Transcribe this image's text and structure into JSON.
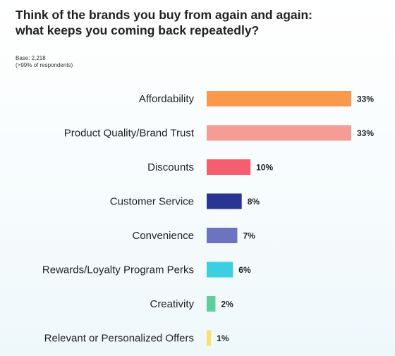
{
  "header": {
    "title_line1": "Think of the brands you buy from again and again:",
    "title_line2": "what keeps you coming back repeatedly?",
    "base_line1": "Base: 2,218",
    "base_line2": "(>99% of respondents)"
  },
  "chart_data": {
    "type": "bar",
    "orientation": "horizontal",
    "title": "Think of the brands you buy from again and again: what keeps you coming back repeatedly?",
    "categories": [
      "Affordability",
      "Product Quality/Brand Trust",
      "Discounts",
      "Customer Service",
      "Convenience",
      "Rewards/Loyalty Program Perks",
      "Creativity",
      "Relevant or Personalized Offers"
    ],
    "values": [
      33,
      33,
      10,
      8,
      7,
      6,
      2,
      1
    ],
    "value_labels": [
      "33%",
      "33%",
      "10%",
      "8%",
      "7%",
      "6%",
      "2%",
      "1%"
    ],
    "colors": [
      "#f9994d",
      "#f59c96",
      "#f55e6e",
      "#283593",
      "#6c74c2",
      "#3ccfe0",
      "#5fcf9a",
      "#f7e170"
    ],
    "xlim": [
      0,
      33
    ],
    "grid": false,
    "legend": "none"
  }
}
